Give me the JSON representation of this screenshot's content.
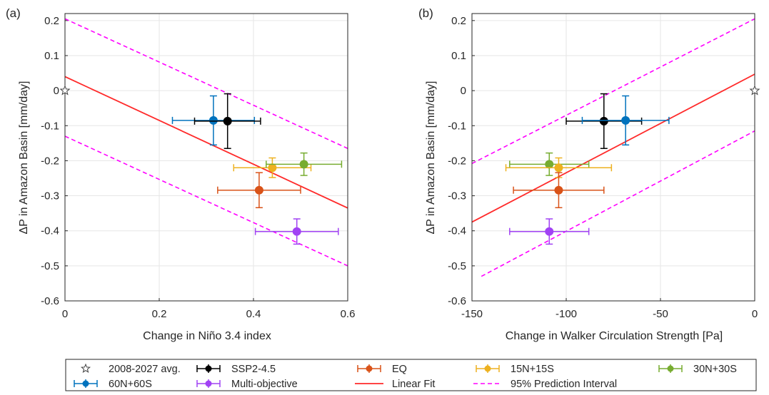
{
  "chart_data": [
    {
      "type": "scatter",
      "panel_label": "(a)",
      "xlabel": "Change in Niño 3.4 index",
      "ylabel": "ΔP in Amazon Basin [mm/day]",
      "xlim": [
        0,
        0.6
      ],
      "ylim": [
        -0.6,
        0.22
      ],
      "xticks": [
        0,
        0.2,
        0.4,
        0.6
      ],
      "xtick_labels": [
        "0",
        "0.2",
        "0.4",
        "0.6"
      ],
      "yticks": [
        0.2,
        0.1,
        0,
        -0.1,
        -0.2,
        -0.3,
        -0.4,
        -0.5,
        -0.6
      ],
      "ytick_labels": [
        "0.2",
        "0.1",
        "0",
        "-0.1",
        "-0.2",
        "-0.3",
        "-0.4",
        "-0.5",
        "-0.6"
      ],
      "grid": true,
      "reference_point": {
        "x": 0,
        "y": 0
      },
      "linear_fit": {
        "x": [
          0,
          0.6
        ],
        "y": [
          0.04,
          -0.335
        ]
      },
      "prediction_upper": {
        "x": [
          0,
          0.6
        ],
        "y": [
          0.205,
          -0.165
        ]
      },
      "prediction_lower": {
        "x": [
          0,
          0.6
        ],
        "y": [
          -0.13,
          -0.5
        ]
      },
      "points": [
        {
          "series": "60N+60S",
          "x": 0.315,
          "y": -0.085,
          "xerr": 0.087,
          "yerr": 0.07
        },
        {
          "series": "SSP2-4.5",
          "x": 0.345,
          "y": -0.087,
          "xerr": 0.07,
          "yerr": 0.078
        },
        {
          "series": "EQ",
          "x": 0.412,
          "y": -0.284,
          "xerr": 0.088,
          "yerr": 0.05
        },
        {
          "series": "15N+15S",
          "x": 0.44,
          "y": -0.22,
          "xerr": 0.082,
          "yerr": 0.028
        },
        {
          "series": "30N+30S",
          "x": 0.507,
          "y": -0.21,
          "xerr": 0.08,
          "yerr": 0.032
        },
        {
          "series": "Multi-objective",
          "x": 0.492,
          "y": -0.402,
          "xerr": 0.088,
          "yerr": 0.036
        }
      ]
    },
    {
      "type": "scatter",
      "panel_label": "(b)",
      "xlabel": "Change in Walker Circulation Strength [Pa]",
      "ylabel": "ΔP in Amazon Basin [mm/day]",
      "xlim": [
        -150,
        0
      ],
      "ylim": [
        -0.6,
        0.22
      ],
      "xticks": [
        -150,
        -100,
        -50,
        0
      ],
      "xtick_labels": [
        "-150",
        "-100",
        "-50",
        "0"
      ],
      "yticks": [
        0.2,
        0.1,
        0,
        -0.1,
        -0.2,
        -0.3,
        -0.4,
        -0.5,
        -0.6
      ],
      "ytick_labels": [
        "0.2",
        "0.1",
        "0",
        "-0.1",
        "-0.2",
        "-0.3",
        "-0.4",
        "-0.5",
        "-0.6"
      ],
      "grid": true,
      "reference_point": {
        "x": 0,
        "y": 0
      },
      "linear_fit": {
        "x": [
          -150,
          0
        ],
        "y": [
          -0.375,
          0.047
        ]
      },
      "prediction_upper": {
        "x": [
          -150,
          0
        ],
        "y": [
          -0.208,
          0.205
        ]
      },
      "prediction_lower": {
        "x": [
          -145,
          0
        ],
        "y": [
          -0.53,
          -0.115
        ]
      },
      "points": [
        {
          "series": "SSP2-4.5",
          "x": -80,
          "y": -0.087,
          "xerr": 20,
          "yerr": 0.078
        },
        {
          "series": "60N+60S",
          "x": -68.5,
          "y": -0.085,
          "xerr": 23,
          "yerr": 0.07
        },
        {
          "series": "30N+30S",
          "x": -109,
          "y": -0.21,
          "xerr": 21,
          "yerr": 0.032
        },
        {
          "series": "15N+15S",
          "x": -104,
          "y": -0.22,
          "xerr": 28,
          "yerr": 0.028
        },
        {
          "series": "EQ",
          "x": -104,
          "y": -0.284,
          "xerr": 24,
          "yerr": 0.05
        },
        {
          "series": "Multi-objective",
          "x": -109,
          "y": -0.402,
          "xerr": 21,
          "yerr": 0.036
        }
      ]
    }
  ],
  "legend": {
    "placement": "bottom",
    "entries": [
      {
        "label": "2008-2027 avg.",
        "kind": "star",
        "color": "#404040"
      },
      {
        "label": "SSP2-4.5",
        "kind": "errorbar",
        "color": "#000000"
      },
      {
        "label": "EQ",
        "kind": "errorbar",
        "color": "#d95319"
      },
      {
        "label": "15N+15S",
        "kind": "errorbar",
        "color": "#edb120"
      },
      {
        "label": "30N+30S",
        "kind": "errorbar",
        "color": "#77ac30"
      },
      {
        "label": "60N+60S",
        "kind": "errorbar",
        "color": "#0072bd"
      },
      {
        "label": "Multi-objective",
        "kind": "errorbar",
        "color": "#a142f4"
      },
      {
        "label": "Linear Fit",
        "kind": "line",
        "color": "#ff2a2a"
      },
      {
        "label": "95% Prediction Interval",
        "kind": "dashed",
        "color": "#ff00ff"
      }
    ]
  },
  "colors": {
    "SSP2-4.5": "#000000",
    "EQ": "#d95319",
    "15N+15S": "#edb120",
    "30N+30S": "#77ac30",
    "60N+60S": "#0072bd",
    "Multi-objective": "#a142f4",
    "fit": "#ff2a2a",
    "interval": "#ff00ff",
    "grid": "#e6e6e6",
    "axis": "#262626"
  }
}
